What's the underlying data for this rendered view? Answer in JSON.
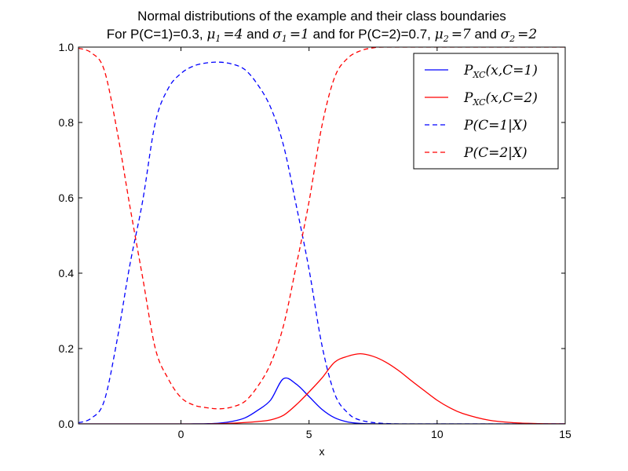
{
  "chart_data": {
    "type": "line",
    "title": "Normal distributions of the example and their class boundaries",
    "subtitle": {
      "p1": "For P(C=1)=0.3, ",
      "mu1_sym": "μ",
      "mu1_sub": "1",
      "mu1_val": "=4",
      "and1": " and ",
      "sig1_sym": "σ",
      "sig1_sub": "1",
      "sig1_val": "=1",
      "p2": " and for P(C=2)=0.7, ",
      "mu2_sym": "μ",
      "mu2_sub": "2",
      "mu2_val": "=7",
      "and2": " and ",
      "sig2_sym": "σ",
      "sig2_sub": "2",
      "sig2_val": "=2"
    },
    "xlabel": "x",
    "ylabel": "",
    "xlim": [
      -4,
      15
    ],
    "ylim": [
      0.0,
      1.0
    ],
    "xticks": [
      0,
      5,
      10,
      15
    ],
    "xtick_labels": [
      "0",
      "5",
      "10",
      "15"
    ],
    "yticks": [
      0.0,
      0.2,
      0.4,
      0.6,
      0.8,
      1.0
    ],
    "ytick_labels": [
      "0.0",
      "0.2",
      "0.4",
      "0.6",
      "0.8",
      "1.0"
    ],
    "legend_position": "top-right",
    "series": [
      {
        "name": {
          "main": "P",
          "sub": "XC",
          "args": "(x,C=1)"
        },
        "color": "#0000ff",
        "style": "solid",
        "x": [
          -4,
          -3,
          -2,
          -1,
          0,
          0.5,
          1,
          1.5,
          2,
          2.5,
          3,
          3.5,
          4,
          4.5,
          5,
          5.5,
          6,
          6.5,
          7,
          7.5,
          8,
          9,
          10,
          12,
          15
        ],
        "y": [
          0.0,
          0.0,
          0.0,
          0.0,
          0.0,
          0.0001,
          0.0005,
          0.0021,
          0.0067,
          0.016,
          0.0363,
          0.0633,
          0.12,
          0.1056,
          0.0726,
          0.0389,
          0.0162,
          0.0053,
          0.0013,
          0.0003,
          0.0001,
          0.0,
          0.0,
          0.0,
          0.0
        ]
      },
      {
        "name": {
          "main": "P",
          "sub": "XC",
          "args": "(x,C=2)"
        },
        "color": "#ff0000",
        "style": "solid",
        "x": [
          -4,
          -2,
          0,
          1,
          2,
          3,
          3.5,
          4,
          4.5,
          5,
          5.5,
          6,
          6.5,
          7,
          7.5,
          8,
          8.5,
          9,
          9.5,
          10,
          10.5,
          11,
          12,
          13,
          14,
          15
        ],
        "y": [
          0.0,
          0.0,
          0.0,
          0.0,
          0.0017,
          0.0063,
          0.0106,
          0.0227,
          0.0507,
          0.0847,
          0.1214,
          0.1638,
          0.1793,
          0.1862,
          0.1793,
          0.1638,
          0.1414,
          0.1143,
          0.0882,
          0.0628,
          0.0426,
          0.0276,
          0.0101,
          0.0031,
          0.0008,
          0.0002
        ]
      },
      {
        "name": {
          "main": "P",
          "sub": "",
          "args": "(C=1|X)"
        },
        "color": "#0000ff",
        "style": "dashed",
        "x": [
          -4,
          -3.5,
          -3,
          -2.5,
          -2,
          -1.5,
          -1,
          -0.5,
          0,
          0.5,
          1,
          1.5,
          2,
          2.5,
          3,
          3.5,
          4,
          4.5,
          5,
          5.5,
          6,
          6.5,
          7,
          8,
          10,
          15
        ],
        "y": [
          0.003,
          0.015,
          0.06,
          0.22,
          0.42,
          0.59,
          0.8,
          0.89,
          0.93,
          0.95,
          0.958,
          0.96,
          0.955,
          0.94,
          0.9,
          0.84,
          0.74,
          0.58,
          0.41,
          0.21,
          0.08,
          0.03,
          0.01,
          0.001,
          0.0,
          0.0
        ]
      },
      {
        "name": {
          "main": "P",
          "sub": "",
          "args": "(C=2|X)"
        },
        "color": "#ff0000",
        "style": "dashed",
        "x": [
          -4,
          -3.5,
          -3,
          -2.5,
          -2,
          -1.5,
          -1,
          -0.5,
          0,
          0.5,
          1,
          1.5,
          2,
          2.5,
          3,
          3.5,
          4,
          4.5,
          5,
          5.5,
          6,
          6.5,
          7,
          7.5,
          8,
          10,
          15
        ],
        "y": [
          0.997,
          0.985,
          0.94,
          0.78,
          0.58,
          0.39,
          0.2,
          0.12,
          0.07,
          0.05,
          0.043,
          0.04,
          0.045,
          0.06,
          0.1,
          0.16,
          0.26,
          0.42,
          0.59,
          0.79,
          0.92,
          0.97,
          0.99,
          0.998,
          1.0,
          1.0,
          1.0
        ]
      }
    ]
  }
}
